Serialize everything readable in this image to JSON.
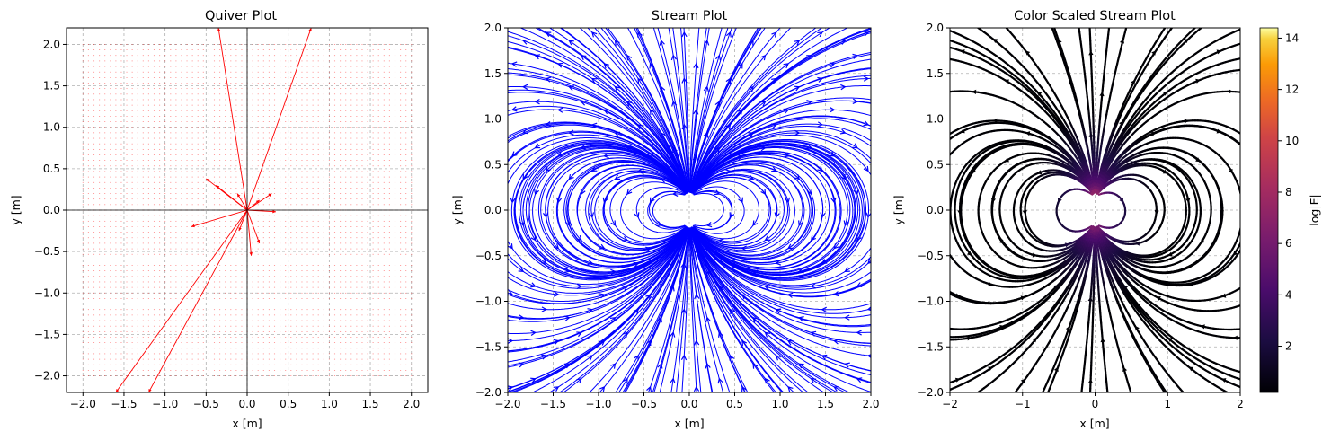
{
  "figure": {
    "panels": [
      {
        "title": "Quiver Plot",
        "xlabel": "x [m]",
        "ylabel": "y [m]"
      },
      {
        "title": "Stream Plot",
        "xlabel": "x [m]",
        "ylabel": "y [m]"
      },
      {
        "title": "Color Scaled Stream Plot",
        "xlabel": "x [m]",
        "ylabel": "y [m]"
      }
    ],
    "colorbar": {
      "label": "log|E|",
      "ticks": [
        "2",
        "4",
        "6",
        "8",
        "10",
        "12",
        "14"
      ],
      "range": [
        0.2,
        14.4
      ],
      "colormap": "inferno"
    }
  },
  "chart_data": [
    {
      "type": "quiver",
      "title": "Quiver Plot",
      "xlabel": "x [m]",
      "ylabel": "y [m]",
      "xlim": [
        -2.2,
        2.2
      ],
      "ylim": [
        -2.2,
        2.2
      ],
      "xticks": [
        "-2.0",
        "-1.5",
        "-1.0",
        "-0.5",
        "0.0",
        "0.5",
        "1.0",
        "1.5",
        "2.0"
      ],
      "yticks": [
        "-2.0",
        "-1.5",
        "-1.0",
        "-0.5",
        "0.0",
        "0.5",
        "1.0",
        "1.5",
        "2.0"
      ],
      "grid": true,
      "color": "#ff0000",
      "field": "dipole at origin, grid -2..2",
      "arrows": [
        {
          "x": 0.0,
          "y": 0.0,
          "u": -0.35,
          "v": 2.2
        },
        {
          "x": 0.0,
          "y": 0.0,
          "u": 0.78,
          "v": 2.2
        },
        {
          "x": 0.0,
          "y": 0.0,
          "u": -1.6,
          "v": -2.2
        },
        {
          "x": 0.0,
          "y": 0.0,
          "u": -1.2,
          "v": -2.2
        },
        {
          "x": 0.0,
          "y": 0.0,
          "u": -0.5,
          "v": 0.38
        },
        {
          "x": 0.0,
          "y": 0.0,
          "u": -0.38,
          "v": 0.3
        },
        {
          "x": 0.0,
          "y": 0.0,
          "u": -0.68,
          "v": -0.2
        },
        {
          "x": 0.0,
          "y": 0.0,
          "u": 0.35,
          "v": -0.02
        },
        {
          "x": 0.0,
          "y": 0.0,
          "u": 0.3,
          "v": 0.2
        },
        {
          "x": 0.0,
          "y": 0.0,
          "u": 0.05,
          "v": -0.55
        },
        {
          "x": 0.0,
          "y": 0.0,
          "u": 0.15,
          "v": -0.4
        },
        {
          "x": 0.0,
          "y": 0.0,
          "u": -0.1,
          "v": -0.25
        },
        {
          "x": 0.0,
          "y": 0.0,
          "u": -0.12,
          "v": 0.2
        },
        {
          "x": 0.0,
          "y": 0.0,
          "u": 0.15,
          "v": 0.12
        }
      ]
    },
    {
      "type": "streamplot",
      "title": "Stream Plot",
      "xlabel": "x [m]",
      "ylabel": "y [m]",
      "xlim": [
        -2.0,
        2.0
      ],
      "ylim": [
        -2.0,
        2.0
      ],
      "xticks": [
        "-2.0",
        "-1.5",
        "-1.0",
        "-0.5",
        "0.0",
        "0.5",
        "1.0",
        "1.5",
        "2.0"
      ],
      "yticks": [
        "-2.0",
        "-1.5",
        "-1.0",
        "-0.5",
        "0.0",
        "0.5",
        "1.0",
        "1.5",
        "2.0"
      ],
      "grid": true,
      "color": "#0000ff",
      "field": "dipole at origin (charges near (0, 0.15) and (0, -0.15))"
    },
    {
      "type": "streamplot",
      "title": "Color Scaled Stream Plot",
      "xlabel": "x [m]",
      "ylabel": "y [m]",
      "xlim": [
        -2,
        2
      ],
      "ylim": [
        -2.0,
        2.0
      ],
      "xticks": [
        "-2",
        "-1",
        "0",
        "1",
        "2"
      ],
      "yticks": [
        "-2.0",
        "-1.5",
        "-1.0",
        "-0.5",
        "0.0",
        "0.5",
        "1.0",
        "1.5",
        "2.0"
      ],
      "grid": true,
      "color_by": "log|E|",
      "field": "dipole at origin"
    }
  ]
}
